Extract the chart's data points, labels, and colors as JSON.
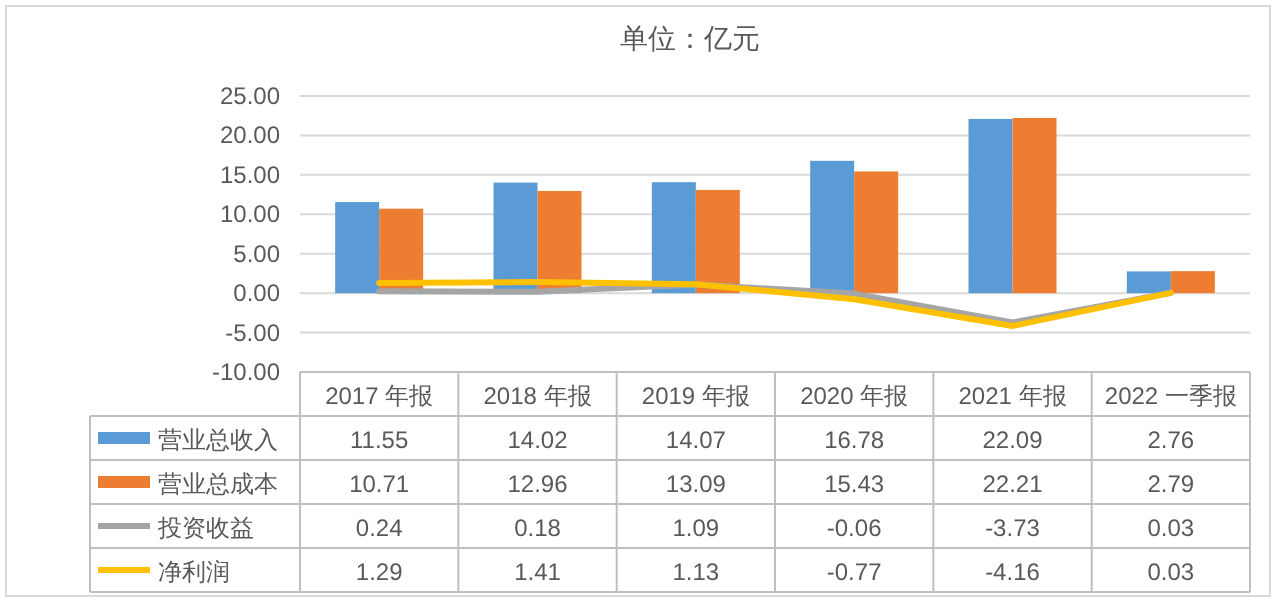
{
  "chart_data": {
    "type": "bar",
    "title": "单位：亿元",
    "categories": [
      "2017 年报",
      "2018 年报",
      "2019 年报",
      "2020 年报",
      "2021 年报",
      "2022 一季报"
    ],
    "series": [
      {
        "name": "营业总收入",
        "color": "#5b9bd5",
        "values": [
          11.55,
          14.02,
          14.07,
          16.78,
          22.09,
          2.76
        ]
      },
      {
        "name": "营业总成本",
        "color": "#ed7d31",
        "values": [
          10.71,
          12.96,
          13.09,
          15.43,
          22.21,
          2.79
        ]
      },
      {
        "name": "投资收益",
        "type": "line",
        "color": "#a5a5a5",
        "values": [
          0.24,
          0.18,
          1.09,
          -0.06,
          -3.73,
          0.03
        ]
      },
      {
        "name": "净利润",
        "type": "line",
        "color": "#ffc000",
        "values": [
          1.29,
          1.41,
          1.13,
          -0.77,
          -4.16,
          0.03
        ]
      }
    ],
    "ylim": [
      -10,
      25
    ],
    "yticks": [
      {
        "value": -10,
        "label": "-10.00"
      },
      {
        "value": -5,
        "label": "-5.00"
      },
      {
        "value": 0,
        "label": "0.00"
      },
      {
        "value": 5,
        "label": "5.00"
      },
      {
        "value": 10,
        "label": "10.00"
      },
      {
        "value": 15,
        "label": "15.00"
      },
      {
        "value": 20,
        "label": "20.00"
      },
      {
        "value": 25,
        "label": "25.00"
      }
    ],
    "grid": "y",
    "legend": "bottom",
    "data_labels": true,
    "line_style": "solid",
    "marker": "none"
  }
}
